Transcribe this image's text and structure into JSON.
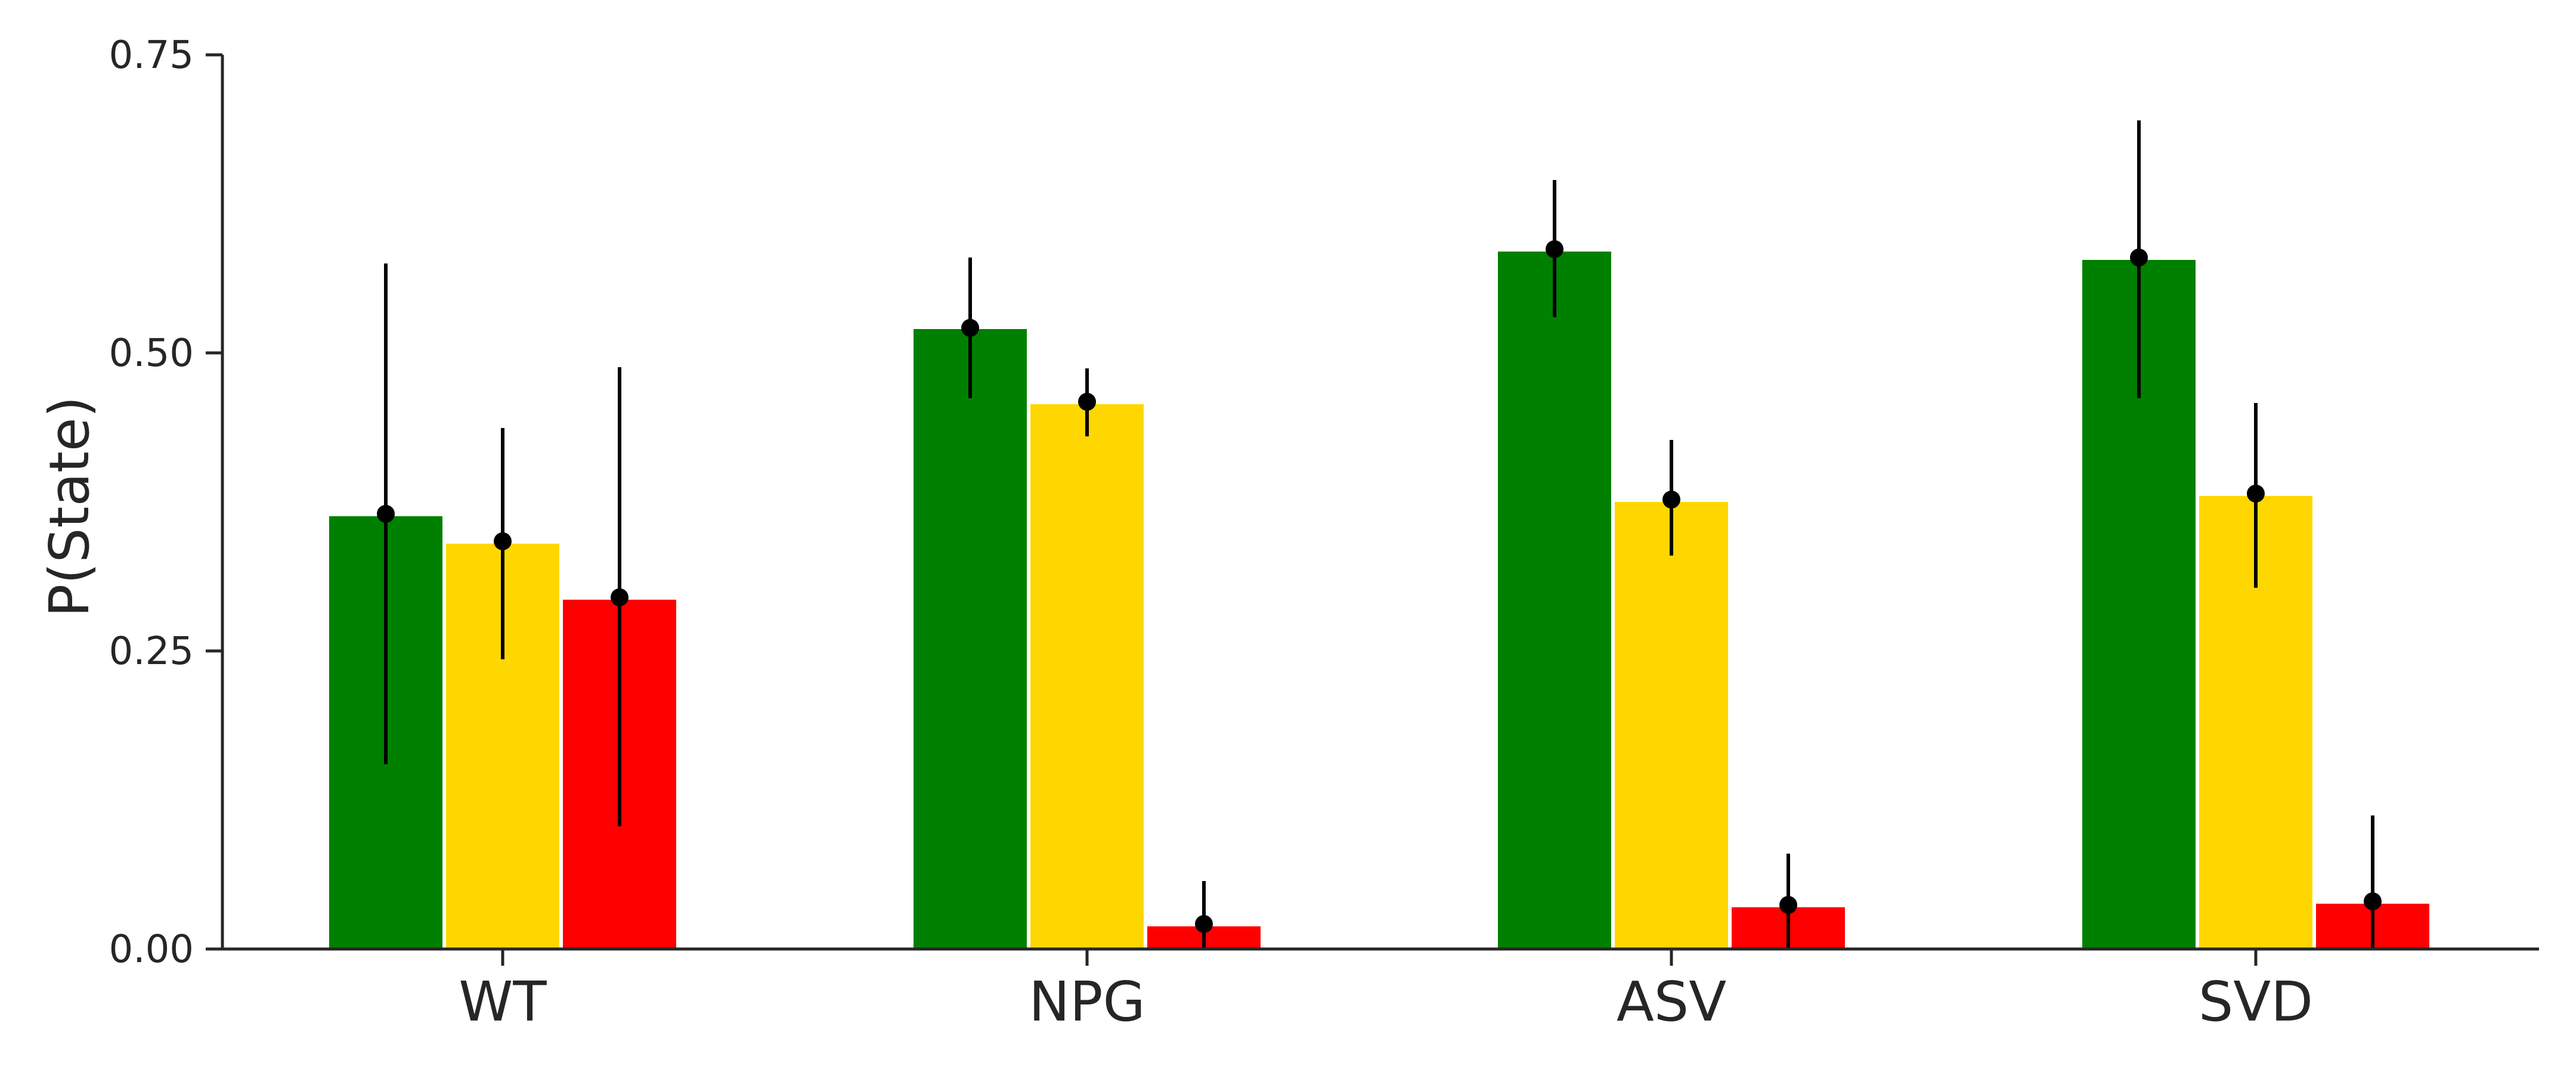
{
  "chart_data": {
    "type": "bar",
    "ylabel": "P(State)",
    "xlabel": "",
    "ylim": [
      0,
      0.75
    ],
    "yticks": [
      "0.00",
      "0.25",
      "0.50",
      "0.75"
    ],
    "categories": [
      "WT",
      "NPG",
      "ASV",
      "SVD"
    ],
    "grid": false,
    "legend": "none",
    "series": [
      {
        "color": "#008000",
        "values": [
          0.363,
          0.52,
          0.585,
          0.578
        ],
        "points": [
          0.365,
          0.521,
          0.587,
          0.58
        ],
        "err_low": [
          0.155,
          0.462,
          0.53,
          0.462
        ],
        "err_high": [
          0.575,
          0.58,
          0.645,
          0.695
        ]
      },
      {
        "color": "#FFD700",
        "values": [
          0.34,
          0.457,
          0.375,
          0.38
        ],
        "points": [
          0.342,
          0.459,
          0.377,
          0.382
        ],
        "err_low": [
          0.243,
          0.43,
          0.33,
          0.303
        ],
        "err_high": [
          0.437,
          0.487,
          0.427,
          0.458
        ]
      },
      {
        "color": "#FF0000",
        "values": [
          0.293,
          0.019,
          0.035,
          0.038
        ],
        "points": [
          0.295,
          0.021,
          0.037,
          0.04
        ],
        "err_low": [
          0.103,
          0.0,
          0.0,
          0.0
        ],
        "err_high": [
          0.488,
          0.057,
          0.08,
          0.112
        ]
      }
    ]
  }
}
